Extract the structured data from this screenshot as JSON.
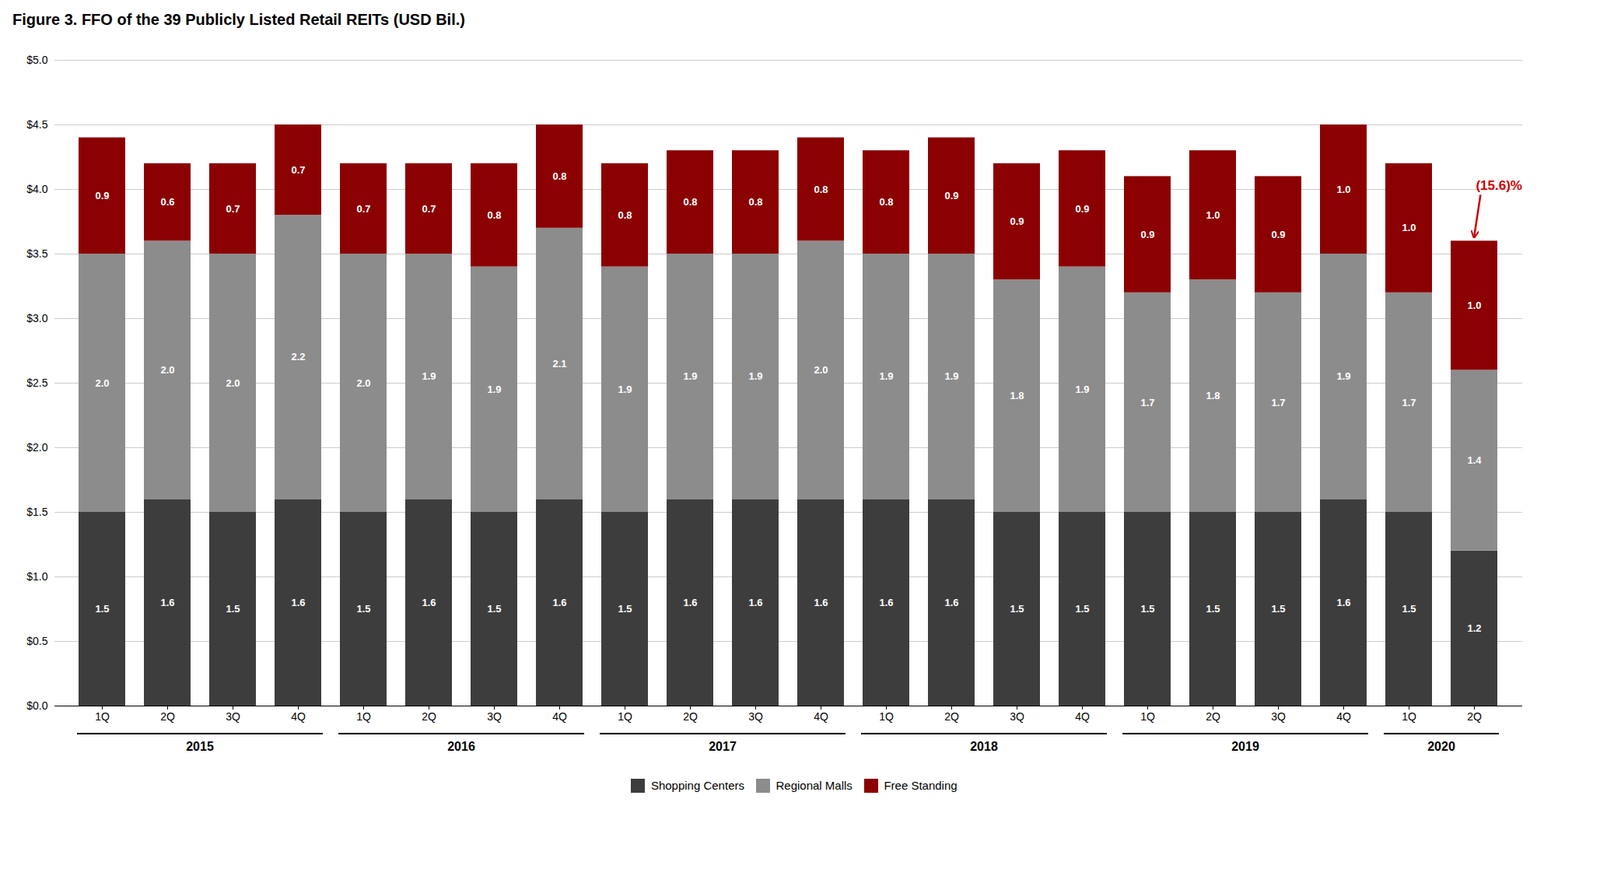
{
  "chart_data": {
    "type": "bar",
    "title": "Figure 3. FFO of the 39 Publicly Listed Retail REITs (USD Bil.)",
    "categories": [
      "1Q",
      "2Q",
      "3Q",
      "4Q",
      "1Q",
      "2Q",
      "3Q",
      "4Q",
      "1Q",
      "2Q",
      "3Q",
      "4Q",
      "1Q",
      "2Q",
      "3Q",
      "4Q",
      "1Q",
      "2Q",
      "3Q",
      "4Q",
      "1Q",
      "2Q"
    ],
    "category_groups": [
      "2015",
      "2015",
      "2015",
      "2015",
      "2016",
      "2016",
      "2016",
      "2016",
      "2017",
      "2017",
      "2017",
      "2017",
      "2018",
      "2018",
      "2018",
      "2018",
      "2019",
      "2019",
      "2019",
      "2019",
      "2020",
      "2020"
    ],
    "series": [
      {
        "name": "Shopping Centers",
        "color": "#3d3d3d",
        "values": [
          1.5,
          1.6,
          1.5,
          1.6,
          1.5,
          1.6,
          1.5,
          1.6,
          1.5,
          1.6,
          1.6,
          1.6,
          1.6,
          1.6,
          1.5,
          1.5,
          1.5,
          1.5,
          1.5,
          1.6,
          1.5,
          1.2
        ],
        "value_labels": [
          "1.5",
          "1.6",
          "1.5",
          "1.6",
          "1.5",
          "1.6",
          "1.5",
          "1.6",
          "1.5",
          "1.6",
          "1.6",
          "1.6",
          "1.6",
          "1.6",
          "1.5",
          "1.5",
          "1.5",
          "1.5",
          "1.5",
          "1.6",
          "1.5",
          "1.2"
        ]
      },
      {
        "name": "Regional Malls",
        "color": "#8c8c8c",
        "values": [
          2.0,
          2.0,
          2.0,
          2.2,
          2.0,
          1.9,
          1.9,
          2.1,
          1.9,
          1.9,
          1.9,
          2.0,
          1.9,
          1.9,
          1.8,
          1.9,
          1.7,
          1.8,
          1.7,
          1.9,
          1.7,
          1.4
        ],
        "value_labels": [
          "2.0",
          "2.0",
          "2.0",
          "2.2",
          "2.0",
          "1.9",
          "1.9",
          "2.1",
          "1.9",
          "1.9",
          "1.9",
          "2.0",
          "1.9",
          "1.9",
          "1.8",
          "1.9",
          "1.7",
          "1.8",
          "1.7",
          "1.9",
          "1.7",
          "1.4"
        ]
      },
      {
        "name": "Free Standing",
        "color": "#8B0000",
        "values": [
          0.9,
          0.6,
          0.7,
          0.7,
          0.7,
          0.7,
          0.8,
          0.8,
          0.8,
          0.8,
          0.8,
          0.8,
          0.8,
          0.9,
          0.9,
          0.9,
          0.9,
          1.0,
          0.9,
          1.0,
          1.0,
          1.0
        ],
        "value_labels": [
          "0.9",
          "0.6",
          "0.7",
          "0.7",
          "0.7",
          "0.7",
          "0.8",
          "0.8",
          "0.8",
          "0.8",
          "0.8",
          "0.8",
          "0.8",
          "0.9",
          "0.9",
          "0.9",
          "0.9",
          "1.0",
          "0.9",
          "1.0",
          "1.0",
          "1.0"
        ]
      }
    ],
    "ylim": [
      0,
      5
    ],
    "yticks": [
      {
        "value": 0,
        "label": "$0.0"
      },
      {
        "value": 0.5,
        "label": "$0.5"
      },
      {
        "value": 1,
        "label": "$1.0"
      },
      {
        "value": 1.5,
        "label": "$1.5"
      },
      {
        "value": 2,
        "label": "$2.0"
      },
      {
        "value": 2.5,
        "label": "$2.5"
      },
      {
        "value": 3,
        "label": "$3.0"
      },
      {
        "value": 3.5,
        "label": "$3.5"
      },
      {
        "value": 4,
        "label": "$4.0"
      },
      {
        "value": 4.5,
        "label": "$4.5"
      },
      {
        "value": 5,
        "label": "$5.0"
      }
    ],
    "grid": true,
    "stacked": true,
    "data_labels": true,
    "legend": "bottom",
    "annotations": [
      {
        "text": "(15.6)%",
        "color": "#CC0000"
      }
    ]
  }
}
